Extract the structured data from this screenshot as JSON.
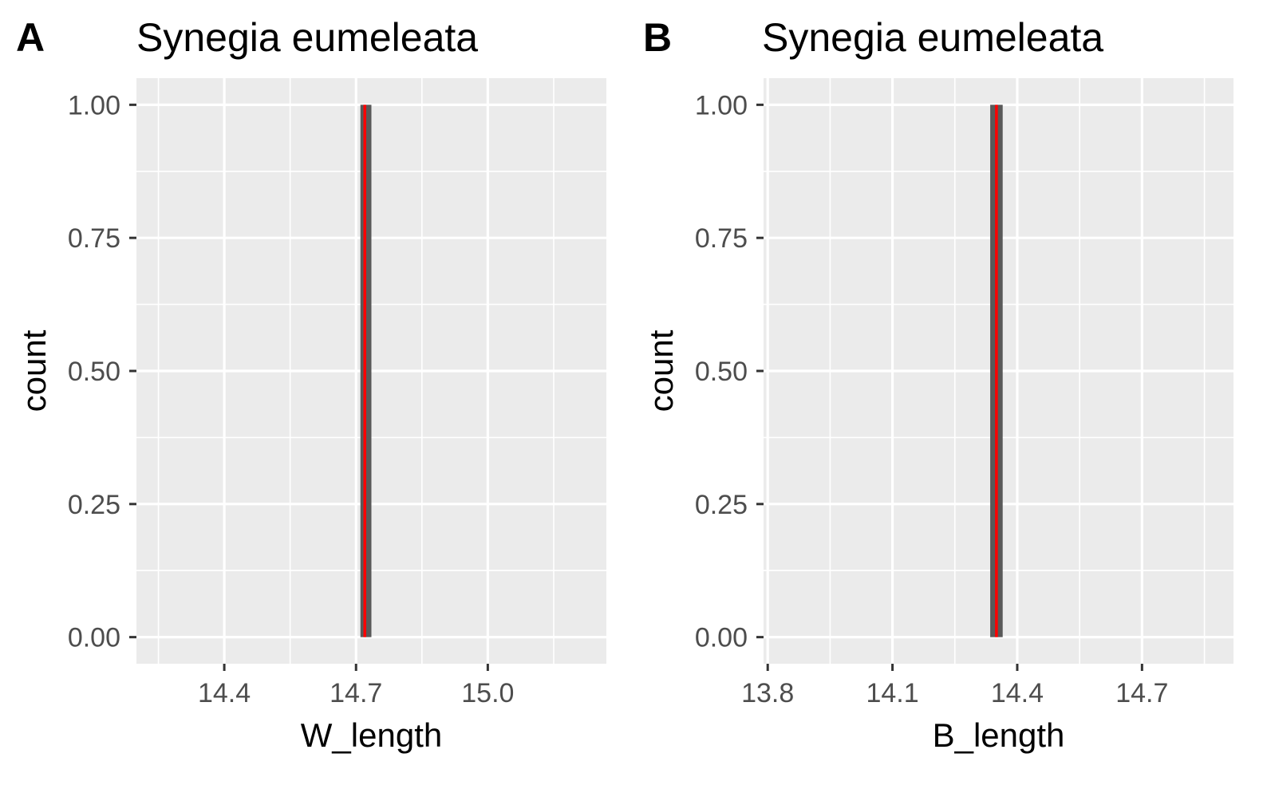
{
  "chart_data": [
    {
      "type": "histogram",
      "panel_label": "A",
      "title": "Synegia eumeleata",
      "xlabel": "W_length",
      "ylabel": "count",
      "xlim": [
        14.2,
        15.27
      ],
      "ylim": [
        -0.05,
        1.05
      ],
      "x_ticks": [
        14.4,
        14.7,
        15.0
      ],
      "x_tick_labels": [
        "14.4",
        "14.7",
        "15.0"
      ],
      "y_ticks": [
        0,
        0.25,
        0.5,
        0.75,
        1.0
      ],
      "y_tick_labels": [
        "0.00",
        "0.25",
        "0.50",
        "0.75",
        "1.00"
      ],
      "bins": [
        {
          "x_start": 14.71,
          "x_end": 14.735,
          "count": 1
        }
      ],
      "reference_line": {
        "x": 14.72,
        "color": "#ff0000"
      },
      "grid": true,
      "bar_color": "#595959",
      "background": "#ebebeb"
    },
    {
      "type": "histogram",
      "panel_label": "B",
      "title": "Synegia eumeleata",
      "xlabel": "B_length",
      "ylabel": "count",
      "xlim": [
        13.79,
        14.92
      ],
      "ylim": [
        -0.05,
        1.05
      ],
      "x_ticks": [
        13.8,
        14.1,
        14.4,
        14.7
      ],
      "x_tick_labels": [
        "13.8",
        "14.1",
        "14.4",
        "14.7"
      ],
      "y_ticks": [
        0,
        0.25,
        0.5,
        0.75,
        1.0
      ],
      "y_tick_labels": [
        "0.00",
        "0.25",
        "0.50",
        "0.75",
        "1.00"
      ],
      "bins": [
        {
          "x_start": 14.335,
          "x_end": 14.365,
          "count": 1
        }
      ],
      "reference_line": {
        "x": 14.35,
        "color": "#ff0000"
      },
      "grid": true,
      "bar_color": "#595959",
      "background": "#ebebeb"
    }
  ]
}
